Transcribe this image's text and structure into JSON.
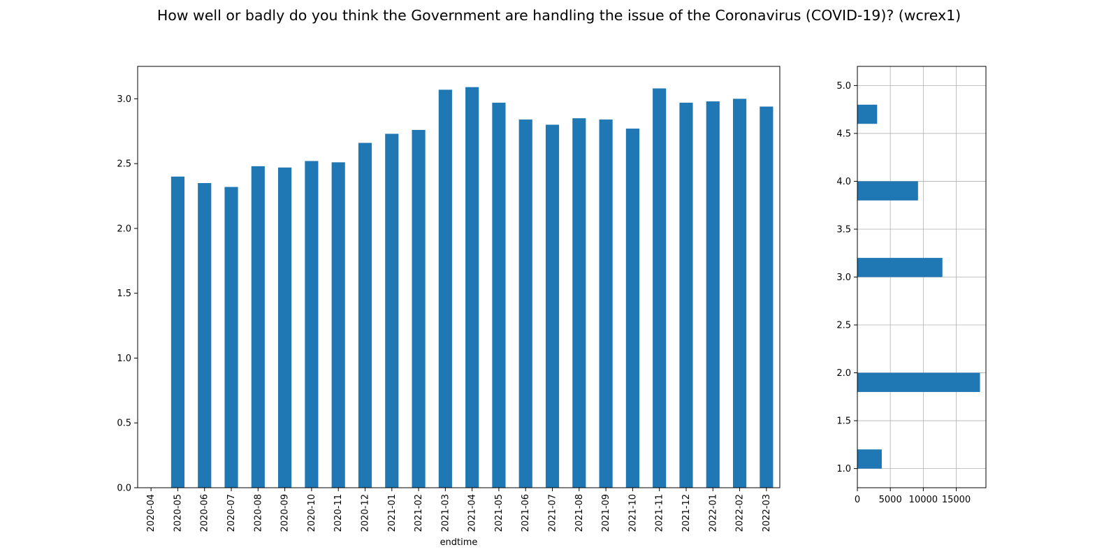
{
  "figure_title": "How well or badly do you think the Government are handling the issue of the Coronavirus (COVID-19)? (wcrex1)",
  "colors": {
    "bar": "#1f77b4",
    "grid": "#b0b0b0",
    "axis": "#000000"
  },
  "chart_data": [
    {
      "type": "bar",
      "title": "",
      "xlabel": "endtime",
      "ylabel": "",
      "ylim": [
        0,
        3.25
      ],
      "yticks": [
        0.0,
        0.5,
        1.0,
        1.5,
        2.0,
        2.5,
        3.0
      ],
      "ytick_labels": [
        "0.0",
        "0.5",
        "1.0",
        "1.5",
        "2.0",
        "2.5",
        "3.0"
      ],
      "grid": false,
      "categories": [
        "2020-04",
        "2020-05",
        "2020-06",
        "2020-07",
        "2020-08",
        "2020-09",
        "2020-10",
        "2020-11",
        "2020-12",
        "2021-01",
        "2021-02",
        "2021-03",
        "2021-04",
        "2021-05",
        "2021-06",
        "2021-07",
        "2021-08",
        "2021-09",
        "2021-10",
        "2021-11",
        "2021-12",
        "2022-01",
        "2022-02",
        "2022-03"
      ],
      "values": [
        null,
        2.4,
        2.35,
        2.32,
        2.48,
        2.47,
        2.52,
        2.51,
        2.66,
        2.73,
        2.76,
        3.07,
        3.09,
        2.97,
        2.84,
        2.8,
        2.85,
        2.84,
        2.77,
        3.08,
        2.97,
        2.98,
        3.0,
        2.94
      ]
    },
    {
      "type": "bar",
      "orientation": "horizontal",
      "title": "",
      "xlabel": "",
      "ylabel": "",
      "xlim": [
        0,
        19500
      ],
      "ylim": [
        0.8,
        5.2
      ],
      "xticks": [
        0,
        5000,
        10000,
        15000
      ],
      "xtick_labels": [
        "0",
        "5000",
        "10000",
        "15000"
      ],
      "yticks": [
        1.0,
        1.5,
        2.0,
        2.5,
        3.0,
        3.5,
        4.0,
        4.5,
        5.0
      ],
      "ytick_labels": [
        "1.0",
        "1.5",
        "2.0",
        "2.5",
        "3.0",
        "3.5",
        "4.0",
        "4.5",
        "5.0"
      ],
      "grid": true,
      "bins": [
        {
          "low": 1.0,
          "high": 1.2,
          "count": 3700
        },
        {
          "low": 1.8,
          "high": 2.0,
          "count": 18600
        },
        {
          "low": 3.0,
          "high": 3.2,
          "count": 12900
        },
        {
          "low": 3.8,
          "high": 4.0,
          "count": 9200
        },
        {
          "low": 4.6,
          "high": 4.8,
          "count": 3000
        }
      ]
    }
  ]
}
